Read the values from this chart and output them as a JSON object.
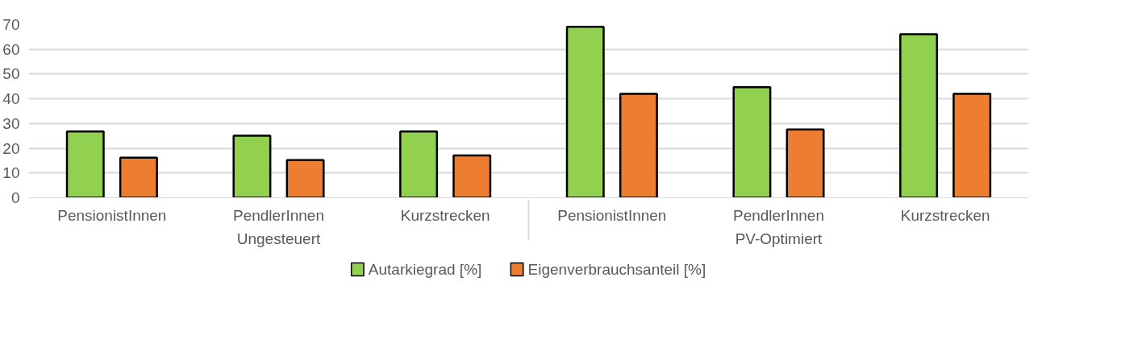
{
  "chart_data": {
    "type": "bar",
    "categories": [
      "PensionistInnen",
      "PendlerInnen",
      "Kurzstrecken",
      "PensionistInnen",
      "PendlerInnen",
      "Kurzstrecken"
    ],
    "annotations": [
      "Ungesteuert",
      "PV-Optimiert"
    ],
    "series": [
      {
        "name": "Autarkiegrad [%]",
        "color": "#92d050",
        "values": [
          26.8,
          25.1,
          26.8,
          69.1,
          44.7,
          66.1
        ]
      },
      {
        "name": "Eigenverbrauchsanteil [%]",
        "color": "#ed7d31",
        "values": [
          16.2,
          15.2,
          17.1,
          42.0,
          27.6,
          42.0
        ]
      }
    ],
    "ylim": [
      0,
      70
    ],
    "yticks": [
      0,
      10,
      20,
      30,
      40,
      50,
      60,
      70
    ],
    "grid": "y",
    "legend": "bottom"
  }
}
